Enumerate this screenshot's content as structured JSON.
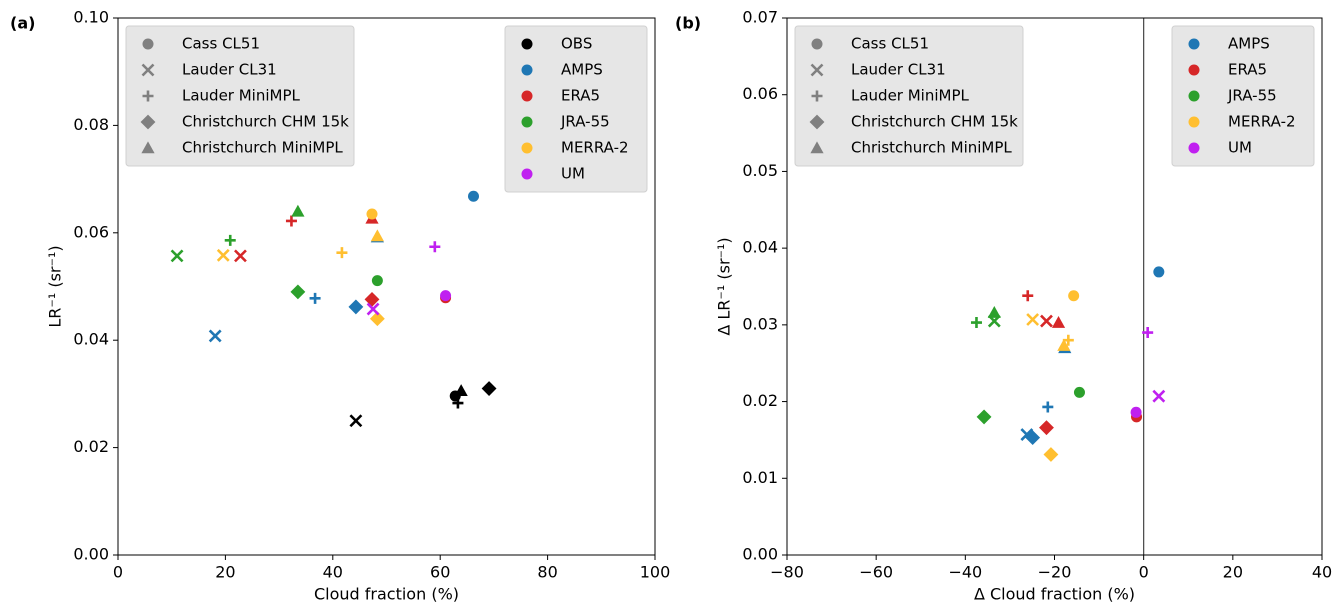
{
  "chart_data": [
    {
      "type": "scatter",
      "panel_label": "(a)",
      "xlabel": "Cloud fraction (%)",
      "ylabel": "LR⁻¹ (sr⁻¹)",
      "xlim": [
        0,
        100
      ],
      "ylim": [
        0,
        0.1
      ],
      "xticks": [
        0,
        20,
        40,
        60,
        80,
        100
      ],
      "yticks": [
        {
          "value": 0,
          "label": "0.00"
        },
        {
          "value": 0.02,
          "label": "0.02"
        },
        {
          "value": 0.04,
          "label": "0.04"
        },
        {
          "value": 0.06,
          "label": "0.06"
        },
        {
          "value": 0.08,
          "label": "0.08"
        },
        {
          "value": 0.1,
          "label": "0.10"
        }
      ],
      "marker_legend_loc": "upper left",
      "legend_loc": "upper right",
      "marker_legend_color": "#808080",
      "sites": [
        {
          "name": "Cass CL51",
          "marker": "circle"
        },
        {
          "name": "Lauder CL31",
          "marker": "x"
        },
        {
          "name": "Lauder MiniMPL",
          "marker": "plus"
        },
        {
          "name": "Christchurch CHM 15k",
          "marker": "diamond"
        },
        {
          "name": "Christchurch MiniMPL",
          "marker": "triangle"
        }
      ],
      "series": [
        {
          "name": "OBS",
          "color": "#000000",
          "x": [
            62.8,
            44.3,
            63.3,
            69.1,
            63.9
          ],
          "values": [
            0.0296,
            0.025,
            0.0283,
            0.031,
            0.0306
          ]
        },
        {
          "name": "AMPS",
          "color": "#1f77b4",
          "x": [
            66.2,
            18.1,
            36.7,
            44.3,
            48.3
          ],
          "values": [
            0.0668,
            0.0408,
            0.0478,
            0.0462,
            0.0592
          ]
        },
        {
          "name": "ERA5",
          "color": "#d62728",
          "x": [
            61.0,
            22.8,
            32.3,
            47.3,
            47.3
          ],
          "values": [
            0.0479,
            0.0557,
            0.0622,
            0.0476,
            0.0627
          ]
        },
        {
          "name": "JRA-55",
          "color": "#2ca02c",
          "x": [
            48.3,
            11.0,
            20.9,
            33.5,
            33.5
          ],
          "values": [
            0.0511,
            0.0557,
            0.0586,
            0.049,
            0.064
          ]
        },
        {
          "name": "MERRA-2",
          "color": "#ffbf30",
          "x": [
            47.3,
            19.6,
            41.7,
            48.3,
            48.3
          ],
          "values": [
            0.0635,
            0.0558,
            0.0563,
            0.044,
            0.0594
          ]
        },
        {
          "name": "UM",
          "color": "#c020f0",
          "x": [
            61.0,
            47.5,
            59.0,
            null,
            null
          ],
          "values": [
            0.0483,
            0.0458,
            0.0574,
            null,
            null
          ]
        }
      ]
    },
    {
      "type": "scatter",
      "panel_label": "(b)",
      "xlabel": "Δ Cloud fraction (%)",
      "ylabel": "Δ LR⁻¹ (sr⁻¹)",
      "xlim": [
        -80,
        40
      ],
      "ylim": [
        0,
        0.07
      ],
      "vline": 0,
      "xticks": [
        {
          "value": -80,
          "label": "−80"
        },
        {
          "value": -60,
          "label": "−60"
        },
        {
          "value": -40,
          "label": "−40"
        },
        {
          "value": -20,
          "label": "−20"
        },
        0,
        20,
        40
      ],
      "yticks": [
        {
          "value": 0,
          "label": "0.00"
        },
        {
          "value": 0.01,
          "label": "0.01"
        },
        {
          "value": 0.02,
          "label": "0.02"
        },
        {
          "value": 0.03,
          "label": "0.03"
        },
        {
          "value": 0.04,
          "label": "0.04"
        },
        {
          "value": 0.05,
          "label": "0.05"
        },
        {
          "value": 0.06,
          "label": "0.06"
        },
        {
          "value": 0.07,
          "label": "0.07"
        }
      ],
      "marker_legend_loc": "upper left",
      "legend_loc": "upper right",
      "marker_legend_color": "#808080",
      "sites": [
        {
          "name": "Cass CL51",
          "marker": "circle"
        },
        {
          "name": "Lauder CL31",
          "marker": "x"
        },
        {
          "name": "Lauder MiniMPL",
          "marker": "plus"
        },
        {
          "name": "Christchurch CHM 15k",
          "marker": "diamond"
        },
        {
          "name": "Christchurch MiniMPL",
          "marker": "triangle"
        }
      ],
      "series": [
        {
          "name": "AMPS",
          "color": "#1f77b4",
          "x": [
            3.4,
            -26.2,
            -21.5,
            -24.9,
            -17.7
          ],
          "values": [
            0.0369,
            0.0157,
            0.0193,
            0.0153,
            0.027
          ]
        },
        {
          "name": "ERA5",
          "color": "#d62728",
          "x": [
            -1.6,
            -21.8,
            -26.0,
            -21.8,
            -19.1
          ],
          "values": [
            0.018,
            0.0305,
            0.0338,
            0.0166,
            0.0303
          ]
        },
        {
          "name": "JRA-55",
          "color": "#2ca02c",
          "x": [
            -14.4,
            -33.5,
            -37.5,
            -35.8,
            -33.5
          ],
          "values": [
            0.0212,
            0.0305,
            0.0303,
            0.018,
            0.0316
          ]
        },
        {
          "name": "MERRA-2",
          "color": "#ffbf30",
          "x": [
            -15.7,
            -24.9,
            -16.9,
            -20.8,
            -17.9
          ],
          "values": [
            0.0338,
            0.0307,
            0.028,
            0.0131,
            0.0273
          ]
        },
        {
          "name": "UM",
          "color": "#c020f0",
          "x": [
            -1.7,
            3.4,
            0.9,
            null,
            null
          ],
          "values": [
            0.0186,
            0.0207,
            0.029,
            null,
            null
          ]
        }
      ]
    }
  ]
}
